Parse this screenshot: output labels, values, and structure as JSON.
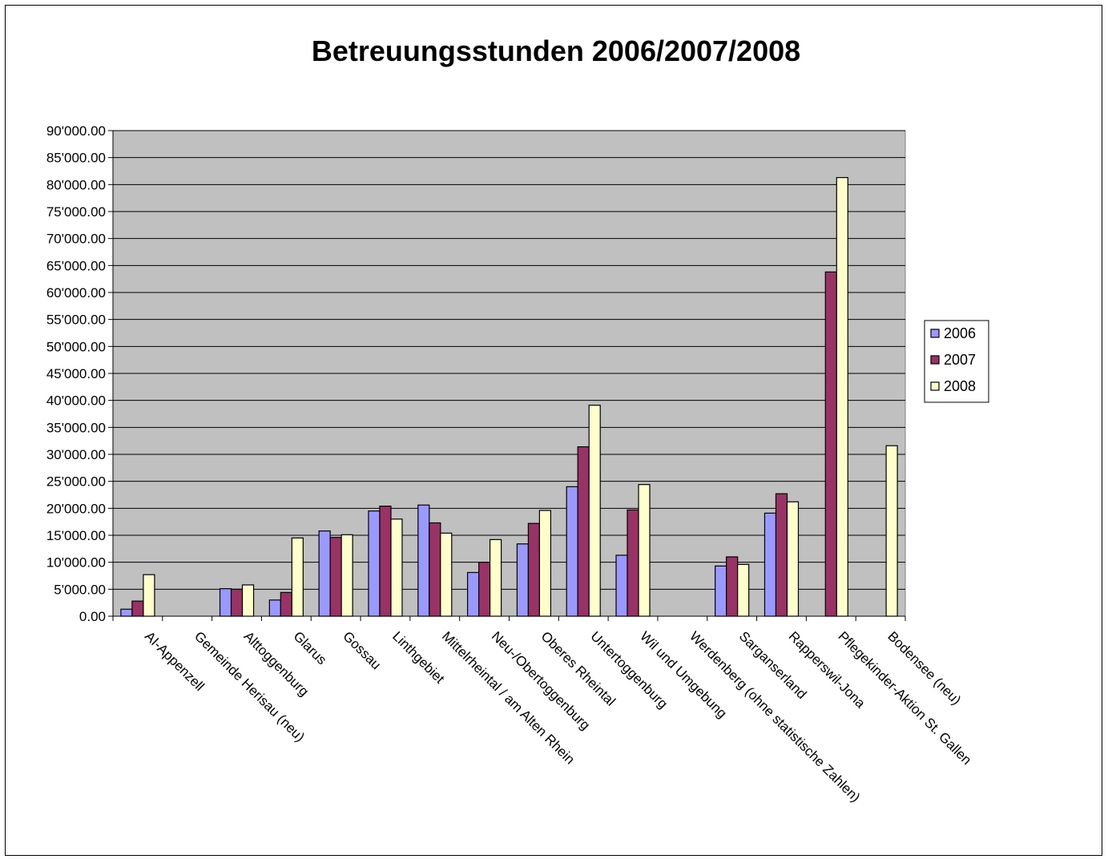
{
  "chart_data": {
    "type": "bar",
    "title": "Betreuungsstunden 2006/2007/2008",
    "xlabel": "",
    "ylabel": "",
    "ylim": [
      0,
      90000
    ],
    "ytick_step": 5000,
    "ytick_labels": [
      "0.00",
      "5'000.00",
      "10'000.00",
      "15'000.00",
      "20'000.00",
      "25'000.00",
      "30'000.00",
      "35'000.00",
      "40'000.00",
      "45'000.00",
      "50'000.00",
      "55'000.00",
      "60'000.00",
      "65'000.00",
      "70'000.00",
      "75'000.00",
      "80'000.00",
      "85'000.00",
      "90'000.00"
    ],
    "grid": true,
    "legend_position": "right",
    "categories": [
      "AI-Appenzell",
      "Gemeinde Herisau (neu)",
      "Alttoggenburg",
      "Glarus",
      "Gossau",
      "Linthgebiet",
      "Mittelrheintal / am Alten Rhein",
      "Neu-/Obertoggenburg",
      "Oberes Rheintal",
      "Untertoggenburg",
      "Wil und Umgebung",
      "Werdenberg (ohne statistische Zahlen)",
      "Sarganserland",
      "Rapperswil-Jona",
      "Pflegekinder-Aktion St. Gallen",
      "Bodensee (neu)"
    ],
    "series": [
      {
        "name": "2006",
        "color": "#9999ff",
        "values": [
          1300,
          0,
          5100,
          3000,
          15800,
          19500,
          20600,
          8100,
          13400,
          24000,
          11300,
          0,
          9300,
          19100,
          0,
          0
        ]
      },
      {
        "name": "2007",
        "color": "#993366",
        "values": [
          2800,
          0,
          5000,
          4400,
          14600,
          20400,
          17300,
          10000,
          17200,
          31400,
          19700,
          0,
          11000,
          22700,
          63800,
          0
        ]
      },
      {
        "name": "2008",
        "color": "#ffffcc",
        "values": [
          7700,
          0,
          5800,
          14500,
          15100,
          18000,
          15400,
          14200,
          19600,
          39100,
          24400,
          0,
          9600,
          21200,
          81300,
          31600
        ]
      }
    ],
    "plot_background": "#c0c0c0"
  }
}
